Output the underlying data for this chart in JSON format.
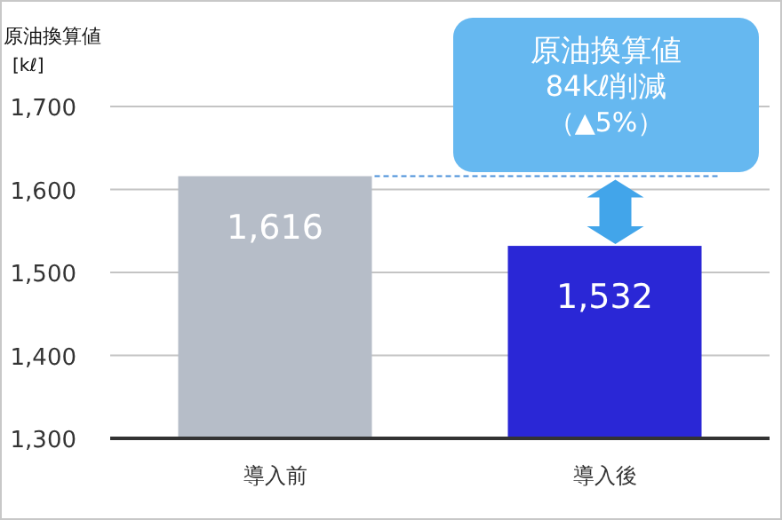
{
  "chart_data": {
    "type": "bar",
    "ylabel": "原油換算値\n[kℓ]",
    "categories": [
      "導入前",
      "導入後"
    ],
    "values": [
      1616,
      1532
    ],
    "value_labels": [
      "1,616",
      "1,532"
    ],
    "colors": [
      "#b6bdc8",
      "#2a27d6"
    ],
    "ylim": [
      1300,
      1700
    ],
    "yticks": [
      {
        "value": 1300,
        "label": "1,300"
      },
      {
        "value": 1400,
        "label": "1,400"
      },
      {
        "value": 1500,
        "label": "1,500"
      },
      {
        "value": 1600,
        "label": "1,600"
      },
      {
        "value": 1700,
        "label": "1,700"
      }
    ],
    "grid": "y",
    "ref_lines": [
      {
        "axis": "y",
        "value": 1616,
        "color": "#4a90d9",
        "line_style": "dashed"
      }
    ],
    "annotations": [
      "原油換算値",
      "84kℓ削減",
      "（▲5%）"
    ]
  }
}
